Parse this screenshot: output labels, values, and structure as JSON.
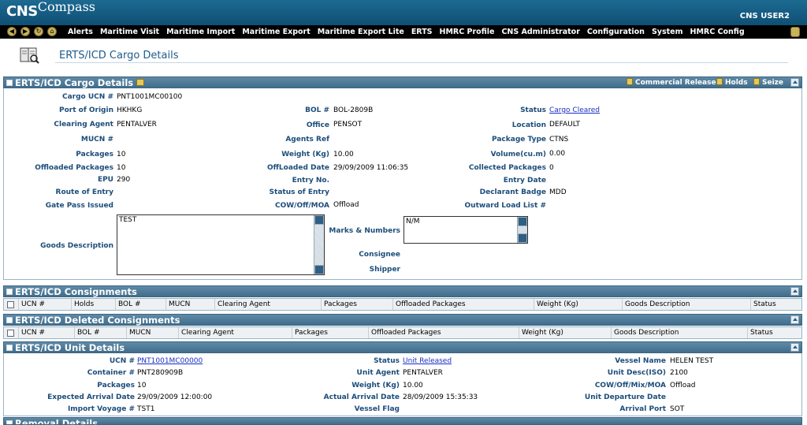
{
  "app": {
    "logo_cns": "CNS",
    "logo_compass": "Compass",
    "user": "CNS USER2"
  },
  "menu": [
    "Alerts",
    "Maritime Visit",
    "Maritime Import",
    "Maritime Export",
    "Maritime Export Lite",
    "ERTS",
    "HMRC Profile",
    "CNS Administrator",
    "Configuration",
    "System",
    "HMRC Config"
  ],
  "page": {
    "title": "ERTS/ICD Cargo Details"
  },
  "cargo": {
    "panel_title": "ERTS/ICD Cargo Details",
    "actions": {
      "commercial_release": "Commercial Release",
      "holds": "Holds",
      "seize": "Seize"
    },
    "labels": {
      "cargo_ucn": "Cargo UCN #",
      "port_of_origin": "Port of Origin",
      "clearing_agent": "Clearing Agent",
      "mucn": "MUCN #",
      "packages": "Packages",
      "offloaded_packages": "Offloaded Packages",
      "epu": "EPU",
      "route_of_entry": "Route of Entry",
      "gate_pass_issued": "Gate Pass Issued",
      "goods_description": "Goods Description",
      "bol": "BOL #",
      "office": "Office",
      "agents_ref": "Agents Ref",
      "weight": "Weight (Kg)",
      "offloaded_date": "OffLoaded Date",
      "entry_no": "Entry No.",
      "status_of_entry": "Status of Entry",
      "cow_off_moa": "COW/Off/MOA",
      "marks_numbers": "Marks & Numbers",
      "consignee": "Consignee",
      "shipper": "Shipper",
      "status": "Status",
      "location": "Location",
      "package_type": "Package Type",
      "volume": "Volume(cu.m)",
      "collected_packages": "Collected Packages",
      "entry_date": "Entry Date",
      "declarant_badge": "Declarant Badge",
      "outward_load_list": "Outward Load List #"
    },
    "values": {
      "cargo_ucn": "PNT1001MC00100",
      "port_of_origin": "HKHKG",
      "clearing_agent": "PENTALVER",
      "packages": "10",
      "offloaded_packages": "10",
      "epu": "290",
      "goods_description": "TEST",
      "bol": "BOL-2809B",
      "office": "PENSOT",
      "weight": "10.00",
      "offloaded_date": "29/09/2009 11:06:35",
      "cow_off_moa": "Offload",
      "marks_numbers": "N/M",
      "status": "Cargo Cleared",
      "location": "DEFAULT",
      "package_type": "CTNS",
      "volume": "0.00",
      "collected_packages": "0",
      "declarant_badge": "MDD"
    }
  },
  "consignments": {
    "panel_title": "ERTS/ICD Consignments",
    "columns": [
      "UCN #",
      "Holds",
      "BOL #",
      "MUCN",
      "Clearing Agent",
      "Packages",
      "Offloaded Packages",
      "Weight (Kg)",
      "Goods Description",
      "Status"
    ]
  },
  "deleted_consignments": {
    "panel_title": "ERTS/ICD Deleted Consignments",
    "columns": [
      "UCN #",
      "BOL #",
      "MUCN",
      "Clearing Agent",
      "Packages",
      "Offloaded Packages",
      "Weight (Kg)",
      "Goods Description",
      "Status"
    ]
  },
  "unit": {
    "panel_title": "ERTS/ICD Unit Details",
    "labels": {
      "ucn": "UCN #",
      "container": "Container #",
      "packages": "Packages",
      "expected_arrival": "Expected Arrival Date",
      "import_voyage": "Import Voyage #",
      "status": "Status",
      "unit_agent": "Unit Agent",
      "weight": "Weight (Kg)",
      "actual_arrival": "Actual Arrival Date",
      "vessel_flag": "Vessel Flag",
      "vessel_name": "Vessel Name",
      "unit_desc": "Unit Desc(ISO)",
      "cow_off_mix": "COW/Off/Mix/MOA",
      "unit_departure": "Unit Departure Date",
      "arrival_port": "Arrival Port"
    },
    "values": {
      "ucn": "PNT1001MC00000",
      "container": "PNT280909B",
      "packages": "10",
      "expected_arrival": "29/09/2009 12:00:00",
      "import_voyage": "TST1",
      "status": "Unit Released",
      "unit_agent": "PENTALVER",
      "weight": "10.00",
      "actual_arrival": "28/09/2009 15:35:33",
      "vessel_name": "HELEN TEST",
      "unit_desc": "2100",
      "cow_off_mix": "Offload",
      "arrival_port": "SOT"
    }
  },
  "next_panel": {
    "panel_title": "Removal Details"
  }
}
